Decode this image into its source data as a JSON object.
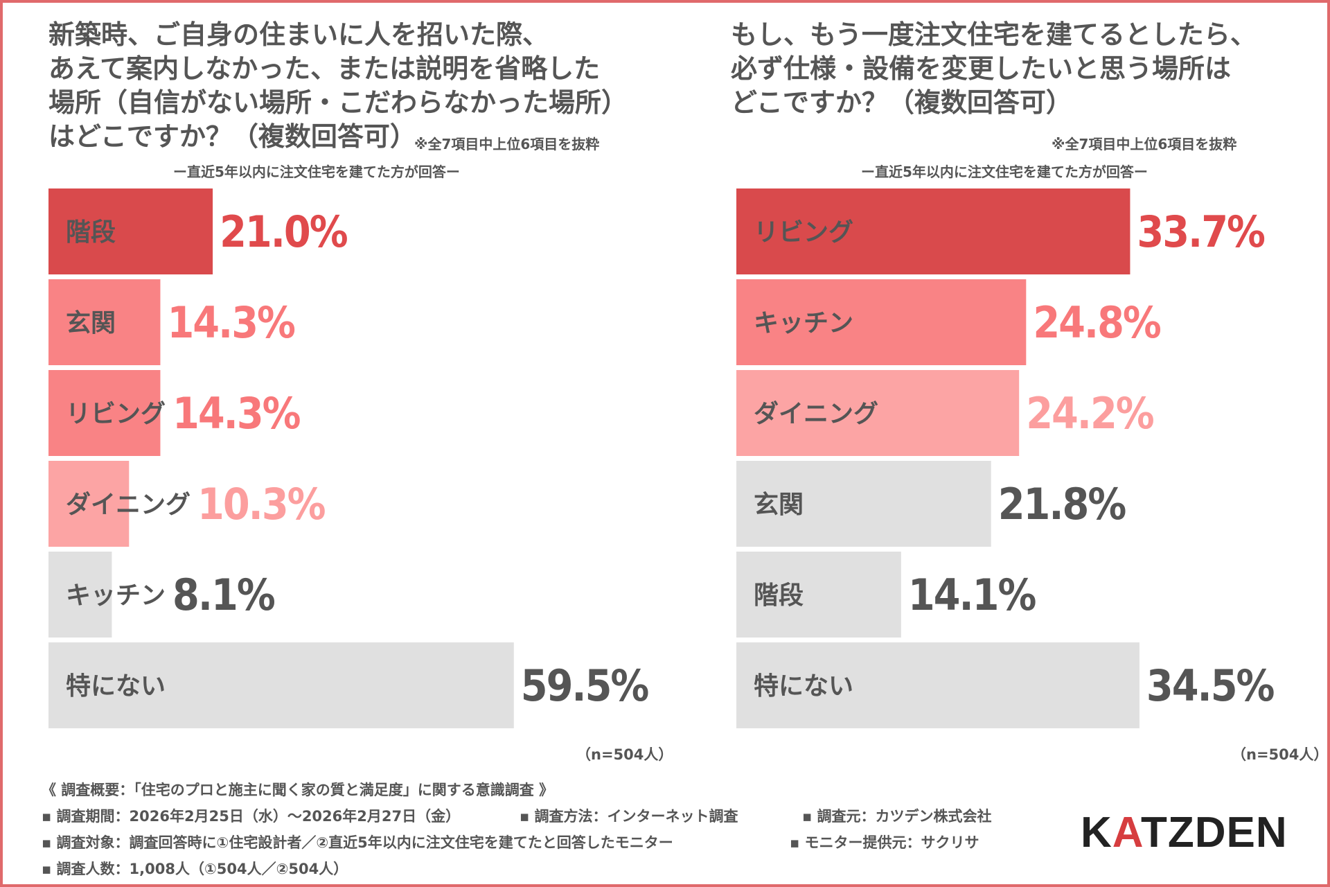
{
  "colors": {
    "frame": "#e06a6c",
    "red_dark": "#d94a4c",
    "red_mid": "#f98385",
    "red_light": "#fca4a4",
    "gray_bar": "#e0e0e0",
    "text_gray": "#555555",
    "value_red_dark": "#e04a4c",
    "value_red_mid": "#f8787a",
    "value_red_light": "#fc9e9e",
    "logo_accent": "#d63d3f"
  },
  "left": {
    "title_lines": [
      "新築時、ご自身の住まいに人を招いた際、",
      "あえて案内しなかった、または説明を省略した",
      "場所（自信がない場所・こだわらなかった場所）",
      "はどこですか？（複数回答可）"
    ],
    "note": "※全7項目中上位6項目を抜粋",
    "subnote": "ー直近5年以内に注文住宅を建てた方が回答ー",
    "n_label": "（n=504人）"
  },
  "right": {
    "title_lines": [
      "もし、もう一度注文住宅を建てるとしたら、",
      "必ず仕様・設備を変更したいと思う場所は",
      "どこですか？（複数回答可）"
    ],
    "note": "※全7項目中上位6項目を抜粋",
    "subnote": "ー直近5年以内に注文住宅を建てた方が回答ー",
    "n_label": "（n=504人）"
  },
  "chart_data": [
    {
      "type": "bar",
      "orientation": "horizontal",
      "title": "新築時、ご自身の住まいに人を招いた際、あえて案内しなかった、または説明を省略した場所（自信がない場所・こだわらなかった場所）はどこですか？（複数回答可）",
      "categories": [
        "階段",
        "玄関",
        "リビング",
        "ダイニング",
        "キッチン",
        "特にない"
      ],
      "values": [
        21.0,
        14.3,
        14.3,
        10.3,
        8.1,
        59.5
      ],
      "value_labels": [
        "21.0%",
        "14.3%",
        "14.3%",
        "10.3%",
        "8.1%",
        "59.5%"
      ],
      "bar_colors": [
        "#d94a4c",
        "#f98385",
        "#f98385",
        "#fca4a4",
        "#e0e0e0",
        "#e0e0e0"
      ],
      "value_colors": [
        "#e04a4c",
        "#f8787a",
        "#f8787a",
        "#fc9e9e",
        "#555555",
        "#555555"
      ],
      "category_label_colors": [
        "#ffffff",
        "#ffffff",
        "#ffffff",
        "#ffffff",
        "#555555",
        "#555555"
      ],
      "unit": "%",
      "xlim": [
        0,
        62
      ]
    },
    {
      "type": "bar",
      "orientation": "horizontal",
      "title": "もし、もう一度注文住宅を建てるとしたら、必ず仕様・設備を変更したいと思う場所はどこですか？（複数回答可）",
      "categories": [
        "リビング",
        "キッチン",
        "ダイニング",
        "玄関",
        "階段",
        "特にない"
      ],
      "values": [
        33.7,
        24.8,
        24.2,
        21.8,
        14.1,
        34.5
      ],
      "value_labels": [
        "33.7%",
        "24.8%",
        "24.2%",
        "21.8%",
        "14.1%",
        "34.5%"
      ],
      "bar_colors": [
        "#d94a4c",
        "#f98385",
        "#fca4a4",
        "#e0e0e0",
        "#e0e0e0",
        "#e0e0e0"
      ],
      "value_colors": [
        "#e04a4c",
        "#f8787a",
        "#fc9e9e",
        "#555555",
        "#555555",
        "#555555"
      ],
      "category_label_colors": [
        "#ffffff",
        "#ffffff",
        "#ffffff",
        "#555555",
        "#555555",
        "#555555"
      ],
      "unit": "%",
      "xlim": [
        0,
        41.5
      ]
    }
  ],
  "survey": {
    "heading": "《 調査概要：「住宅のプロと施主に聞く家の質と満足度」に関する意識調査 》",
    "row1": [
      "▪ 調査期間：2026年2月25日（水）〜2026年2月27日（金）",
      "▪ 調査方法：インターネット調査",
      "▪ 調査元：カツデン株式会社"
    ],
    "row2": [
      "▪ 調査対象：調査回答時に①住宅設計者／②直近5年以内に注文住宅を建てたと回答したモニター",
      "▪ モニター提供元：サクリサ"
    ],
    "row3": "▪ 調査人数：1,008人（①504人／②504人）"
  },
  "logo": {
    "prefix": "K",
    "accent": "A",
    "suffix": "TZDEN"
  }
}
